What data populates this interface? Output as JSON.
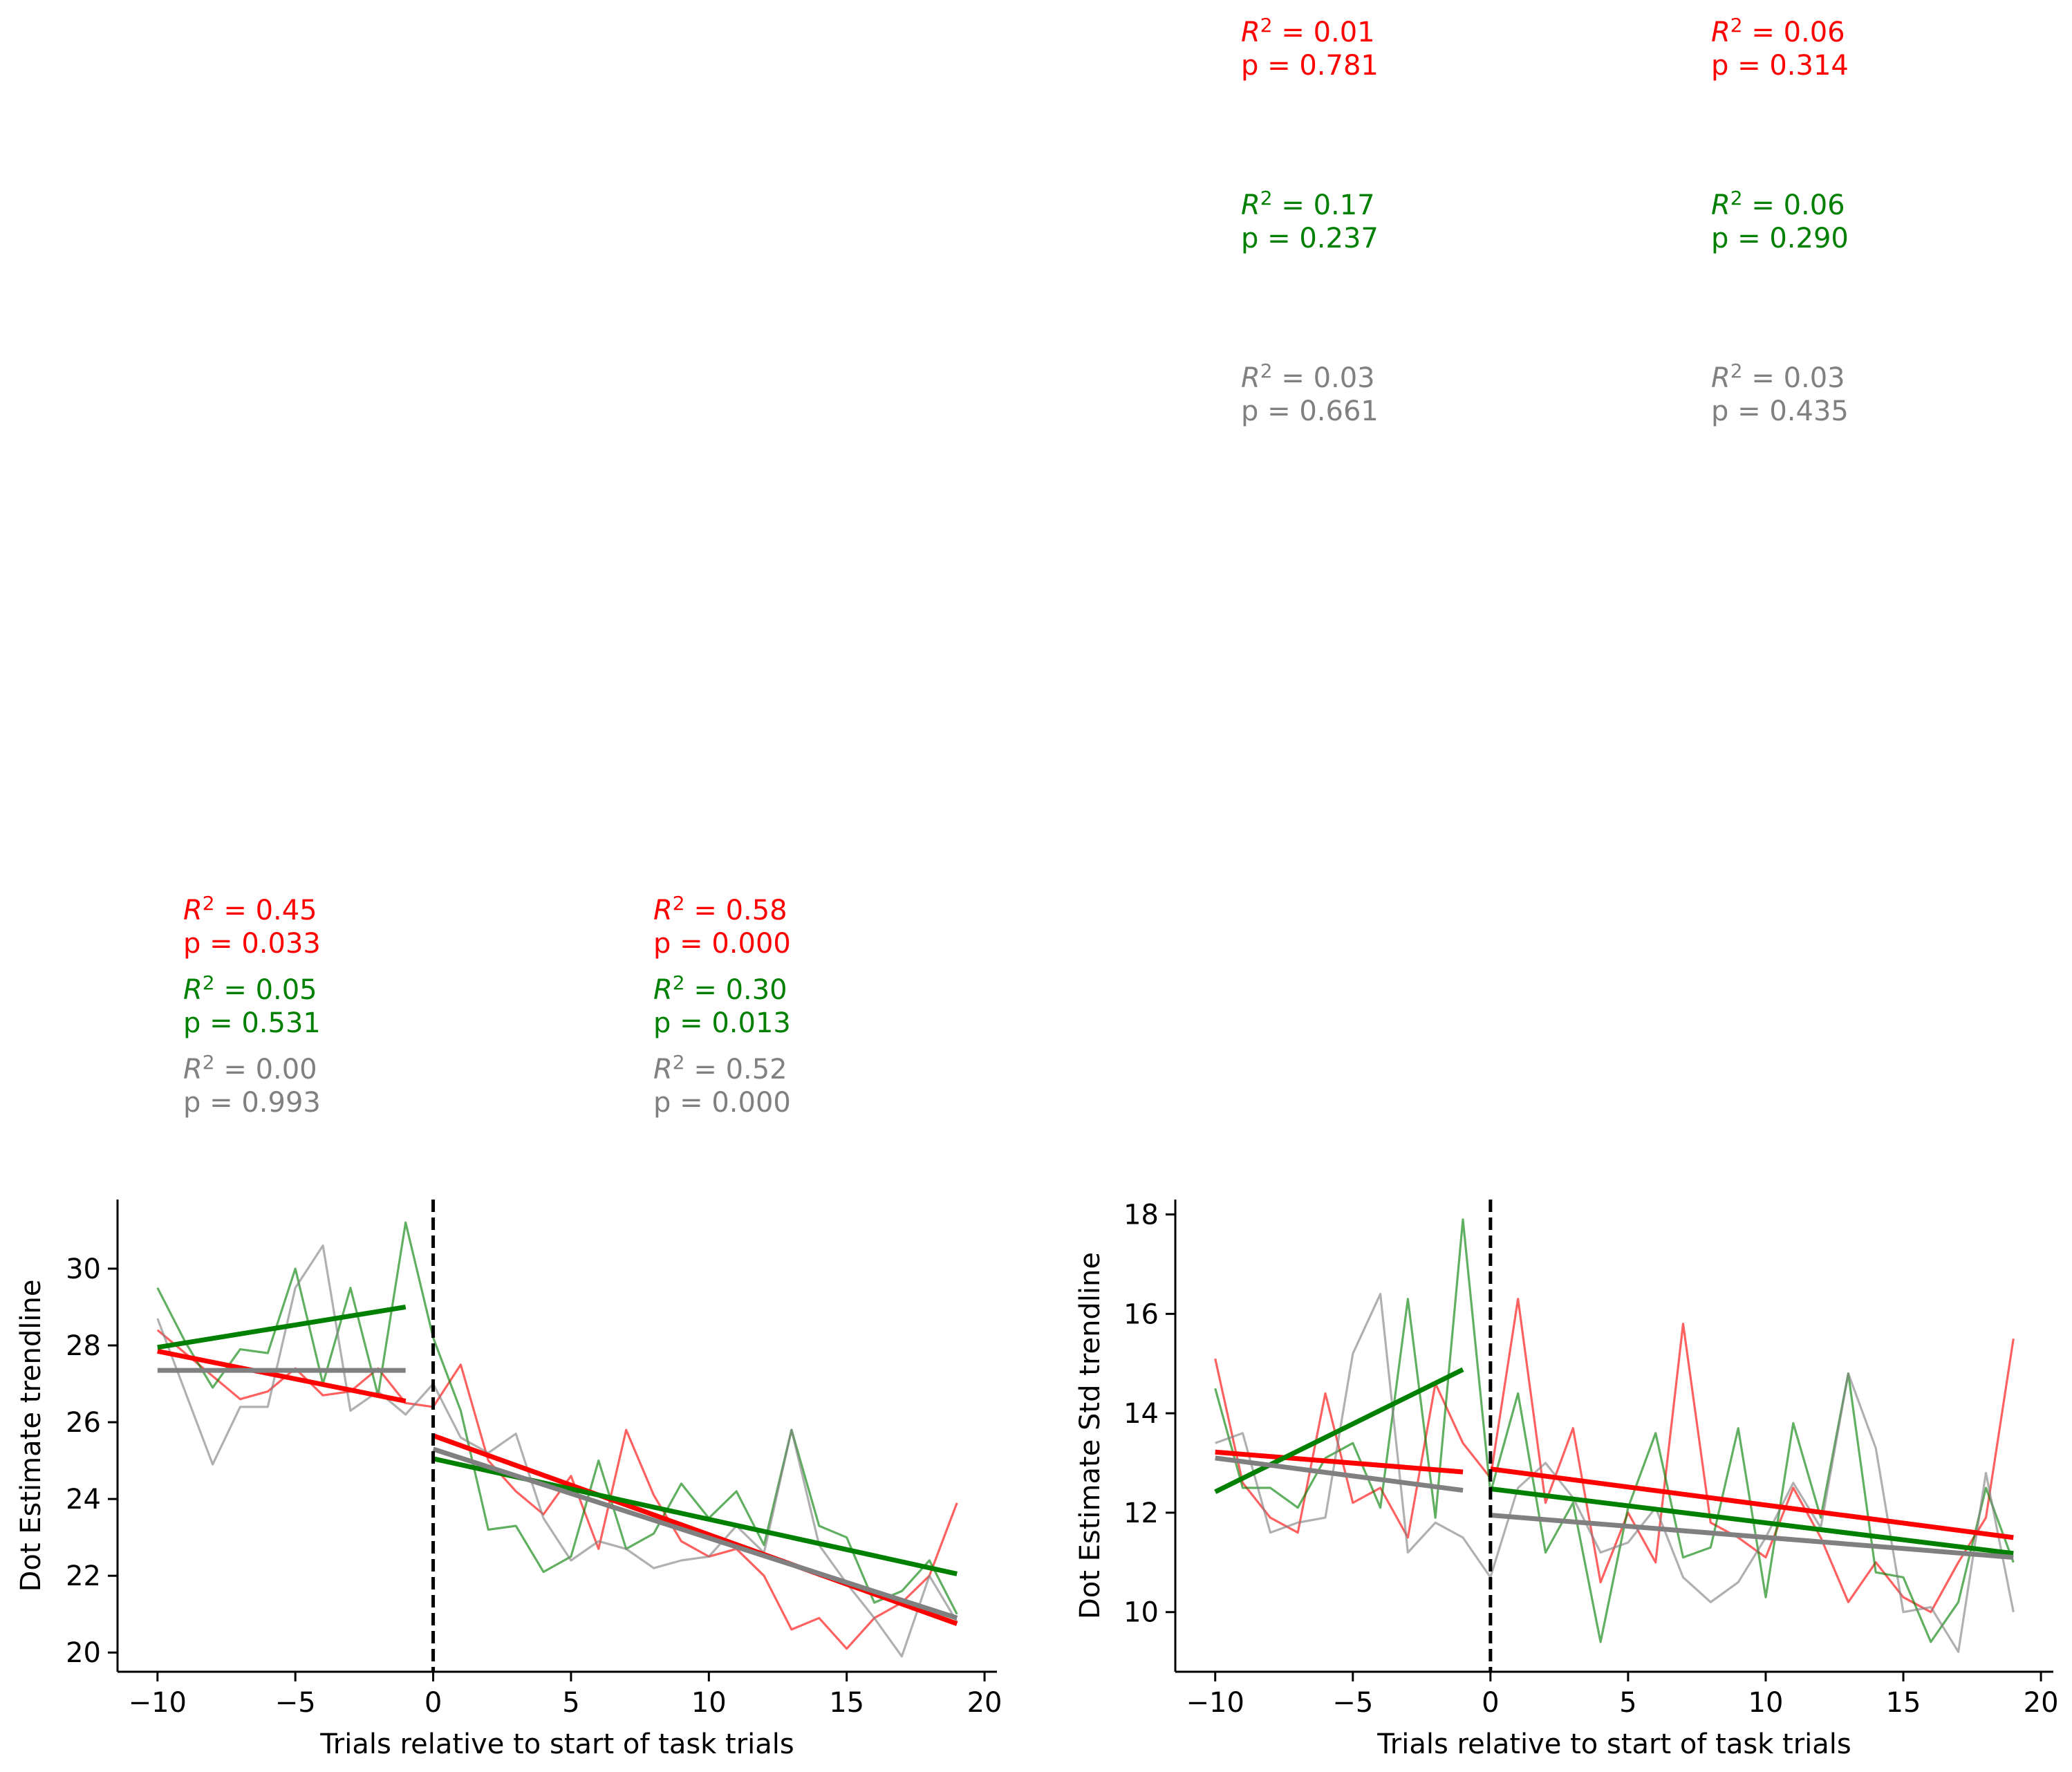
{
  "colors": {
    "red": "#ff0000",
    "green": "#008000",
    "gray": "#808080",
    "black": "#000000"
  },
  "chart_data": [
    {
      "type": "line",
      "xlabel": "Trials relative to start of task trials",
      "ylabel": "Dot Estimate trendline",
      "xlim": [
        -11.45,
        20.45
      ],
      "ylim": [
        19.5,
        31.8
      ],
      "xticks": [
        -10,
        -5,
        0,
        5,
        10,
        15,
        20
      ],
      "xtick_labels": [
        "−10",
        "−5",
        "0",
        "5",
        "10",
        "15",
        "20"
      ],
      "yticks": [
        20,
        22,
        24,
        26,
        28,
        30
      ],
      "ytick_labels": [
        "20",
        "22",
        "24",
        "26",
        "28",
        "30"
      ],
      "vline_x": 0,
      "x": [
        -10,
        -9,
        -8,
        -7,
        -6,
        -5,
        -4,
        -3,
        -2,
        -1,
        0,
        1,
        2,
        3,
        4,
        5,
        6,
        7,
        8,
        9,
        10,
        11,
        12,
        13,
        14,
        15,
        16,
        17,
        18,
        19
      ],
      "series": [
        {
          "color": "red",
          "values": [
            28.4,
            27.8,
            27.2,
            26.6,
            26.8,
            27.4,
            26.7,
            26.8,
            27.4,
            26.5,
            26.4,
            27.5,
            25.0,
            24.2,
            23.6,
            24.6,
            22.7,
            25.8,
            24.1,
            22.9,
            22.5,
            22.7,
            22.0,
            20.6,
            20.9,
            20.1,
            20.9,
            21.3,
            22.0,
            23.9
          ]
        },
        {
          "color": "green",
          "values": [
            29.5,
            28.1,
            26.9,
            27.9,
            27.8,
            30.0,
            27.0,
            29.5,
            26.7,
            31.2,
            28.2,
            26.3,
            23.2,
            23.3,
            22.1,
            22.5,
            25.0,
            22.7,
            23.1,
            24.4,
            23.5,
            24.2,
            22.8,
            25.8,
            23.3,
            23.0,
            21.3,
            21.6,
            22.4,
            21.0
          ]
        },
        {
          "color": "gray",
          "values": [
            28.7,
            26.8,
            24.9,
            26.4,
            26.4,
            29.5,
            30.6,
            26.3,
            26.8,
            26.2,
            27.0,
            25.6,
            25.2,
            25.7,
            23.5,
            22.4,
            22.9,
            22.7,
            22.2,
            22.4,
            22.5,
            23.3,
            22.6,
            25.8,
            22.8,
            21.8,
            20.9,
            19.9,
            22.0,
            20.8
          ]
        }
      ],
      "trendlines": [
        {
          "color": "red",
          "segments": [
            {
              "x": [
                -10,
                -1
              ],
              "y": [
                27.85,
                26.55
              ]
            },
            {
              "x": [
                0,
                19
              ],
              "y": [
                25.65,
                20.75
              ]
            }
          ]
        },
        {
          "color": "green",
          "segments": [
            {
              "x": [
                -10,
                -1
              ],
              "y": [
                27.95,
                29.0
              ]
            },
            {
              "x": [
                0,
                19
              ],
              "y": [
                25.05,
                22.05
              ]
            }
          ]
        },
        {
          "color": "gray",
          "segments": [
            {
              "x": [
                -10,
                -1
              ],
              "y": [
                27.35,
                27.35
              ]
            },
            {
              "x": [
                0,
                19
              ],
              "y": [
                25.3,
                20.9
              ]
            }
          ]
        }
      ],
      "annotations": [
        {
          "color": "red",
          "r2": "= 0.45",
          "p": "p = 0.033"
        },
        {
          "color": "green",
          "r2": "= 0.05",
          "p": "p = 0.531"
        },
        {
          "color": "gray",
          "r2": "= 0.00",
          "p": "p = 0.993"
        },
        {
          "color": "red",
          "r2": "= 0.58",
          "p": "p = 0.000"
        },
        {
          "color": "green",
          "r2": "= 0.30",
          "p": "p = 0.013"
        },
        {
          "color": "gray",
          "r2": "= 0.52",
          "p": "p = 0.000"
        }
      ]
    },
    {
      "type": "line",
      "xlabel": "Trials relative to start of task trials",
      "ylabel": "Dot Estimate Std trendline",
      "xlim": [
        -11.45,
        20.45
      ],
      "ylim": [
        8.8,
        18.3
      ],
      "xticks": [
        -10,
        -5,
        0,
        5,
        10,
        15,
        20
      ],
      "xtick_labels": [
        "−10",
        "−5",
        "0",
        "5",
        "10",
        "15",
        "20"
      ],
      "yticks": [
        10,
        12,
        14,
        16,
        18
      ],
      "ytick_labels": [
        "10",
        "12",
        "14",
        "16",
        "18"
      ],
      "vline_x": 0,
      "x": [
        -10,
        -9,
        -8,
        -7,
        -6,
        -5,
        -4,
        -3,
        -2,
        -1,
        0,
        1,
        2,
        3,
        4,
        5,
        6,
        7,
        8,
        9,
        10,
        11,
        12,
        13,
        14,
        15,
        16,
        17,
        18,
        19
      ],
      "series": [
        {
          "color": "red",
          "values": [
            15.1,
            12.6,
            11.9,
            11.6,
            14.4,
            12.2,
            12.5,
            11.5,
            14.6,
            13.4,
            12.7,
            16.3,
            12.2,
            13.7,
            10.6,
            12.0,
            11.0,
            15.8,
            11.8,
            11.5,
            11.1,
            12.5,
            11.5,
            10.2,
            11.0,
            10.3,
            10.0,
            11.0,
            11.9,
            15.5
          ]
        },
        {
          "color": "green",
          "values": [
            14.5,
            12.5,
            12.5,
            12.1,
            13.1,
            13.4,
            12.1,
            16.3,
            11.9,
            17.9,
            12.4,
            14.4,
            11.2,
            12.2,
            9.4,
            12.1,
            13.6,
            11.1,
            11.3,
            13.7,
            10.3,
            13.8,
            11.9,
            14.8,
            10.8,
            10.7,
            9.4,
            10.2,
            12.5,
            11.0
          ]
        },
        {
          "color": "gray",
          "values": [
            13.4,
            13.6,
            11.6,
            11.8,
            11.9,
            15.2,
            16.4,
            11.2,
            11.8,
            11.5,
            10.7,
            12.5,
            13.0,
            12.3,
            11.2,
            11.4,
            12.1,
            10.7,
            10.2,
            10.6,
            11.5,
            12.6,
            11.7,
            14.8,
            13.3,
            10.0,
            10.1,
            9.2,
            12.8,
            10.0
          ]
        }
      ],
      "trendlines": [
        {
          "color": "red",
          "segments": [
            {
              "x": [
                -10,
                -1
              ],
              "y": [
                13.22,
                12.82
              ]
            },
            {
              "x": [
                0,
                19
              ],
              "y": [
                12.88,
                11.5
              ]
            }
          ]
        },
        {
          "color": "green",
          "segments": [
            {
              "x": [
                -10,
                -1
              ],
              "y": [
                12.42,
                14.88
              ]
            },
            {
              "x": [
                0,
                19
              ],
              "y": [
                12.48,
                11.18
              ]
            }
          ]
        },
        {
          "color": "gray",
          "segments": [
            {
              "x": [
                -10,
                -1
              ],
              "y": [
                13.1,
                12.45
              ]
            },
            {
              "x": [
                0,
                19
              ],
              "y": [
                11.95,
                11.1
              ]
            }
          ]
        }
      ],
      "annotations": [
        {
          "color": "red",
          "r2": "= 0.01",
          "p": "p = 0.781"
        },
        {
          "color": "green",
          "r2": "= 0.17",
          "p": "p = 0.237"
        },
        {
          "color": "gray",
          "r2": "= 0.03",
          "p": "p = 0.661"
        },
        {
          "color": "red",
          "r2": "= 0.06",
          "p": "p = 0.314"
        },
        {
          "color": "green",
          "r2": "= 0.06",
          "p": "p = 0.290"
        },
        {
          "color": "gray",
          "r2": "= 0.03",
          "p": "p = 0.435"
        }
      ]
    }
  ]
}
